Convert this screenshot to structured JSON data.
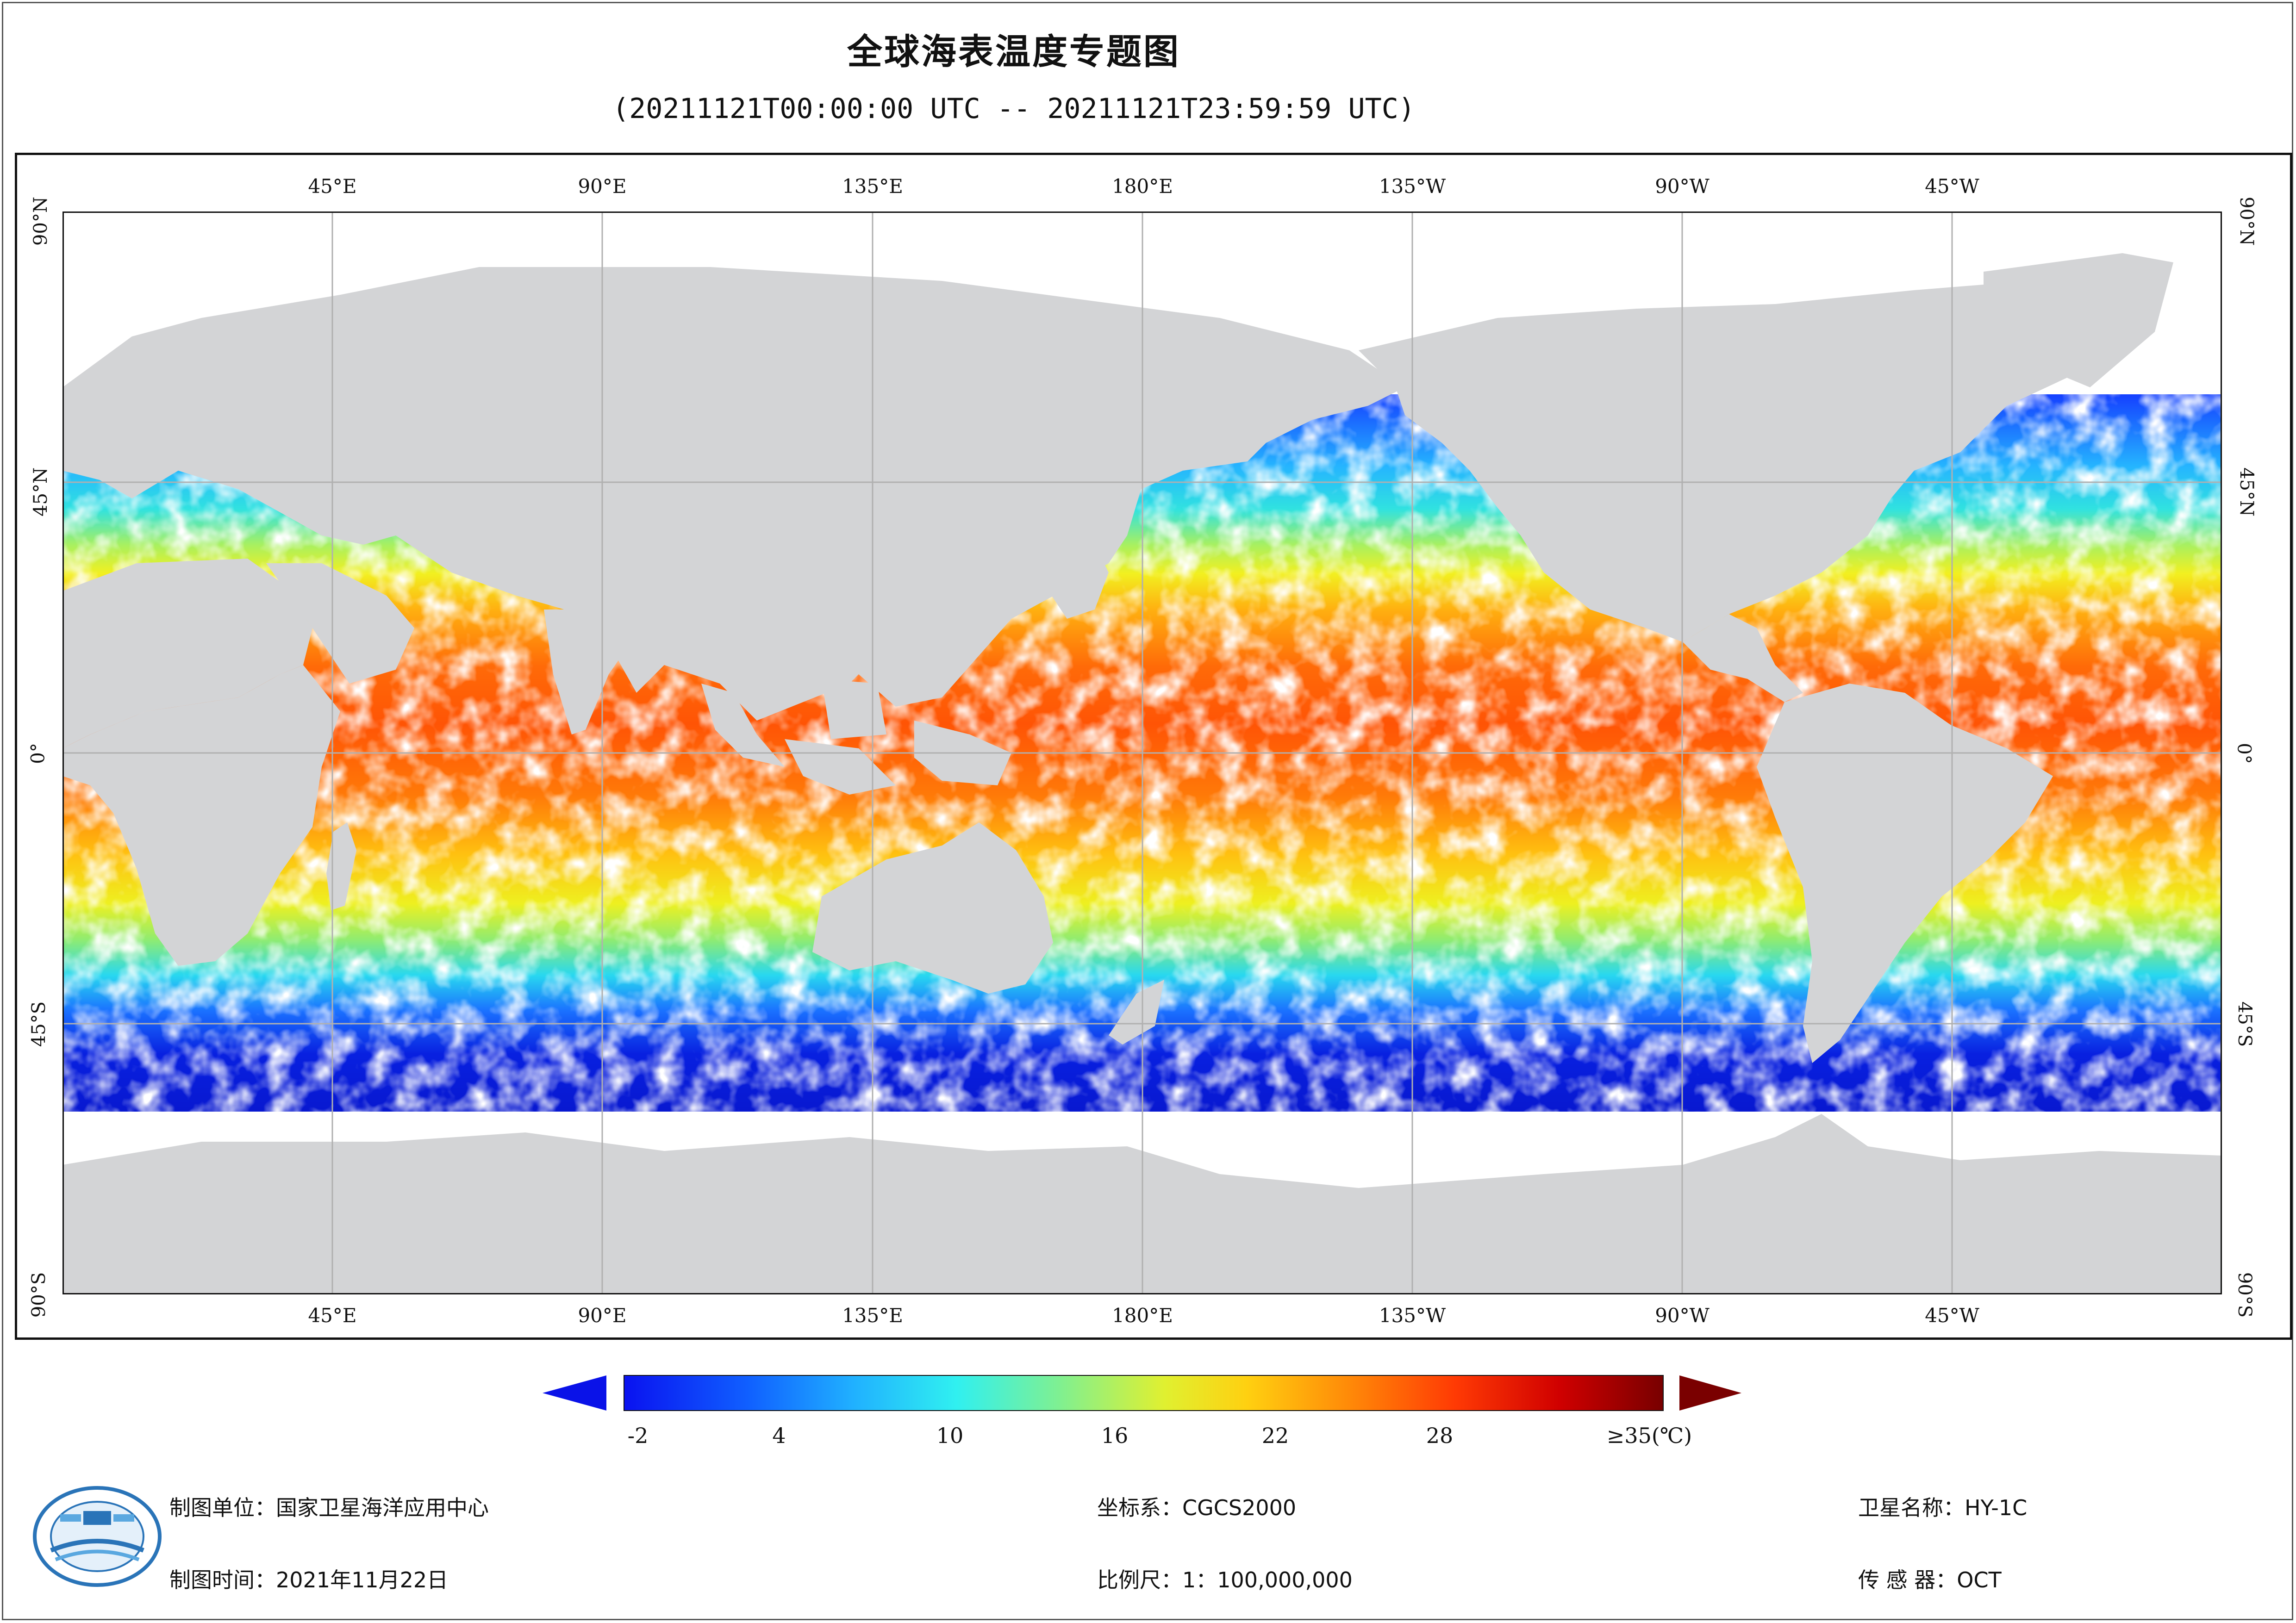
{
  "title": "全球海表温度专题图",
  "subtitle": "(20211121T00:00:00 UTC -- 20211121T23:59:59 UTC)",
  "map": {
    "lon_labels": [
      "45°E",
      "90°E",
      "135°E",
      "180°E",
      "135°W",
      "90°W",
      "45°W"
    ],
    "lat_labels": [
      "90°N",
      "45°N",
      "0°",
      "45°S",
      "90°S"
    ],
    "land_color": "#d3d4d6",
    "cloud_color": "#ffffff",
    "grid_color": "#b0b0b0"
  },
  "colorbar": {
    "tick_labels": [
      "-2",
      "4",
      "10",
      "16",
      "22",
      "28",
      "≥35(℃)"
    ],
    "min": -2,
    "max": 35,
    "under_color": "#0a12e8",
    "over_color": "#7a0000"
  },
  "info": {
    "unit": "制图单位：国家卫星海洋应用中心",
    "date": "制图时间：2021年11月22日",
    "crs": "坐标系：CGCS2000",
    "scale": "比例尺：1：100,000,000",
    "satellite": "卫星名称：HY-1C",
    "sensor": "传  感  器：OCT"
  },
  "logo": {
    "text_top": "国家卫星海洋应用中心",
    "text_bottom": "NATIONAL SATELLITE OCEAN APPLICATION SERVICE"
  }
}
